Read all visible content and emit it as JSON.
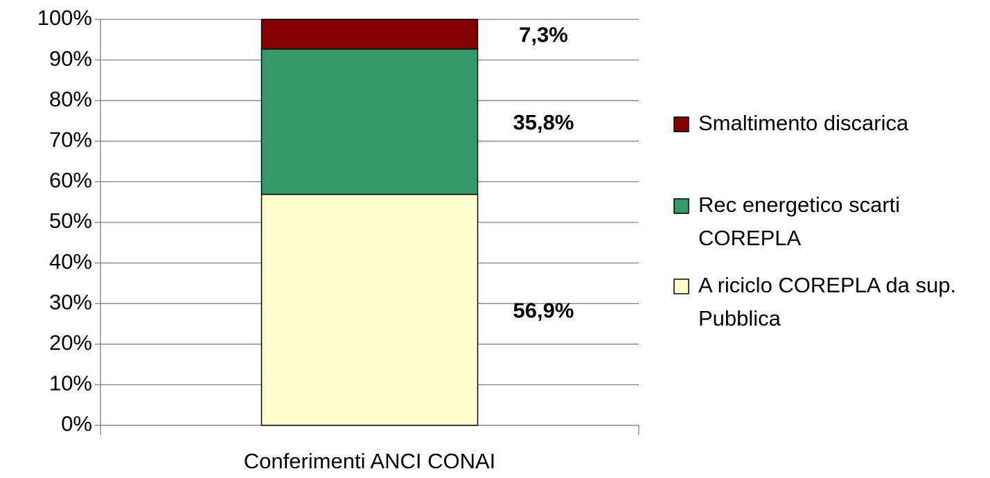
{
  "chart_data": {
    "type": "stacked_bar",
    "categories": [
      "Conferimenti ANCI CONAI"
    ],
    "series": [
      {
        "name": "A riciclo COREPLA da sup. Pubblica",
        "color": "#ffffcc",
        "values": [
          56.9
        ],
        "value_labels": [
          "56,9%"
        ]
      },
      {
        "name": "Rec energetico scarti COREPLA",
        "color": "#339966",
        "values": [
          35.8
        ],
        "value_labels": [
          "35,8%"
        ]
      },
      {
        "name": "Smaltimento discarica",
        "color": "#800000",
        "values": [
          7.3
        ],
        "value_labels": [
          "7,3%"
        ]
      }
    ],
    "ylim": [
      0,
      100
    ],
    "yticks": [
      {
        "value": 0,
        "label": "0%"
      },
      {
        "value": 10,
        "label": "10%"
      },
      {
        "value": 20,
        "label": "20%"
      },
      {
        "value": 30,
        "label": "30%"
      },
      {
        "value": 40,
        "label": "40%"
      },
      {
        "value": 50,
        "label": "50%"
      },
      {
        "value": 60,
        "label": "60%"
      },
      {
        "value": 70,
        "label": "70%"
      },
      {
        "value": 80,
        "label": "80%"
      },
      {
        "value": 90,
        "label": "90%"
      },
      {
        "value": 100,
        "label": "100%"
      }
    ],
    "grid": true,
    "legend": "right"
  }
}
